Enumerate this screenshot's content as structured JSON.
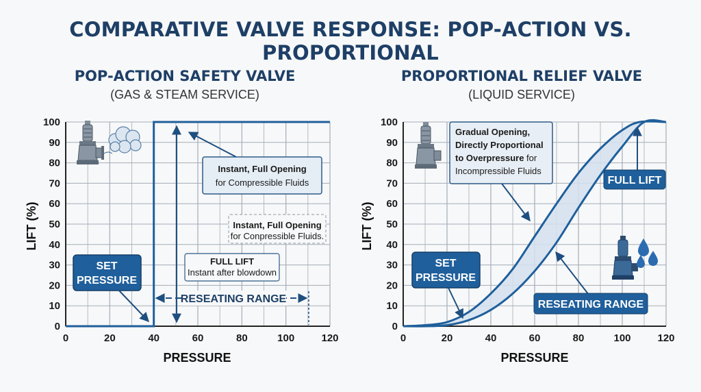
{
  "title": "COMPARATIVE VALVE RESPONSE: POP-ACTION VS. PROPORTIONAL",
  "colors": {
    "primary": "#1f5f9b",
    "dark": "#1e3f66",
    "fill": "#dbe6f1",
    "grid": "#9aa3ad",
    "background": "#f7f8f9"
  },
  "chart_data": [
    {
      "type": "line",
      "title": "POP-ACTION SAFETY VALVE",
      "subtitle": "(GAS & STEAM SERVICE)",
      "xlabel": "PRESSURE",
      "ylabel": "LIFT (%)",
      "xlim": [
        0,
        120
      ],
      "ylim": [
        0,
        100
      ],
      "xticks": [
        "0",
        "20",
        "40",
        "60",
        "80",
        "100",
        "120"
      ],
      "yticks": [
        "0",
        "10",
        "20",
        "30",
        "40",
        "50",
        "60",
        "70",
        "80",
        "90",
        "100"
      ],
      "grid": true,
      "series": [
        {
          "x": [
            0,
            40,
            40,
            120
          ],
          "y": [
            0,
            0,
            100,
            100
          ]
        }
      ],
      "icon": "safety-valve-with-steam-cloud-icon",
      "annotations": {
        "instant_main_bold": "Instant, Full Opening",
        "instant_main_text": "for Compressible Fluids",
        "instant_small_bold": "Instant, Full Opening",
        "instant_small_text": "for Conpressible Fluids.",
        "full_lift_bold": "FULL LIFT",
        "full_lift_text": "Instant after blowdown",
        "set_pressure_line1": "SET",
        "set_pressure_line2": "PRESSURE",
        "reseating_range": "RESEATING RANGE",
        "reseating_x": [
          40,
          110
        ]
      }
    },
    {
      "type": "line",
      "title": "PROPORTIONAL RELIEF VALVE",
      "subtitle": "(LIQUID SERVICE)",
      "xlabel": "PRESSURE",
      "ylabel": "LIFT (%)",
      "xlim": [
        0,
        120
      ],
      "ylim": [
        0,
        100
      ],
      "xticks": [
        "0",
        "20",
        "40",
        "60",
        "80",
        "100",
        "120"
      ],
      "yticks": [
        "0",
        "10",
        "20",
        "30",
        "40",
        "50",
        "60",
        "70",
        "80",
        "90",
        "100"
      ],
      "grid": true,
      "series": [
        {
          "x": [
            0,
            10,
            20,
            30,
            40,
            50,
            60,
            70,
            80,
            90,
            100,
            108,
            120
          ],
          "y": [
            0,
            0.5,
            2,
            7,
            16,
            28,
            44,
            60,
            75,
            87,
            96,
            100,
            100
          ]
        },
        {
          "x": [
            0,
            10,
            20,
            30,
            40,
            50,
            60,
            70,
            80,
            90,
            100,
            110,
            120
          ],
          "y": [
            0,
            0,
            0.5,
            3,
            8,
            16,
            27,
            41,
            58,
            74,
            88,
            100,
            100
          ]
        }
      ],
      "icons": [
        "relief-valve-icon",
        "liquid-drops-icon"
      ],
      "annotations": {
        "gradual_line1": "Gradual Opening,",
        "gradual_line2": "Directly Proportional",
        "gradual_line3_bold": "to Overpressure",
        "gradual_line3_rest": " for",
        "gradual_line4": "Incompressible Fluids",
        "full_lift": "FULL LIFT",
        "set_pressure_line1": "SET",
        "set_pressure_line2": "PRESSURE",
        "reseating_range": "RESEATING RANGE"
      }
    }
  ]
}
